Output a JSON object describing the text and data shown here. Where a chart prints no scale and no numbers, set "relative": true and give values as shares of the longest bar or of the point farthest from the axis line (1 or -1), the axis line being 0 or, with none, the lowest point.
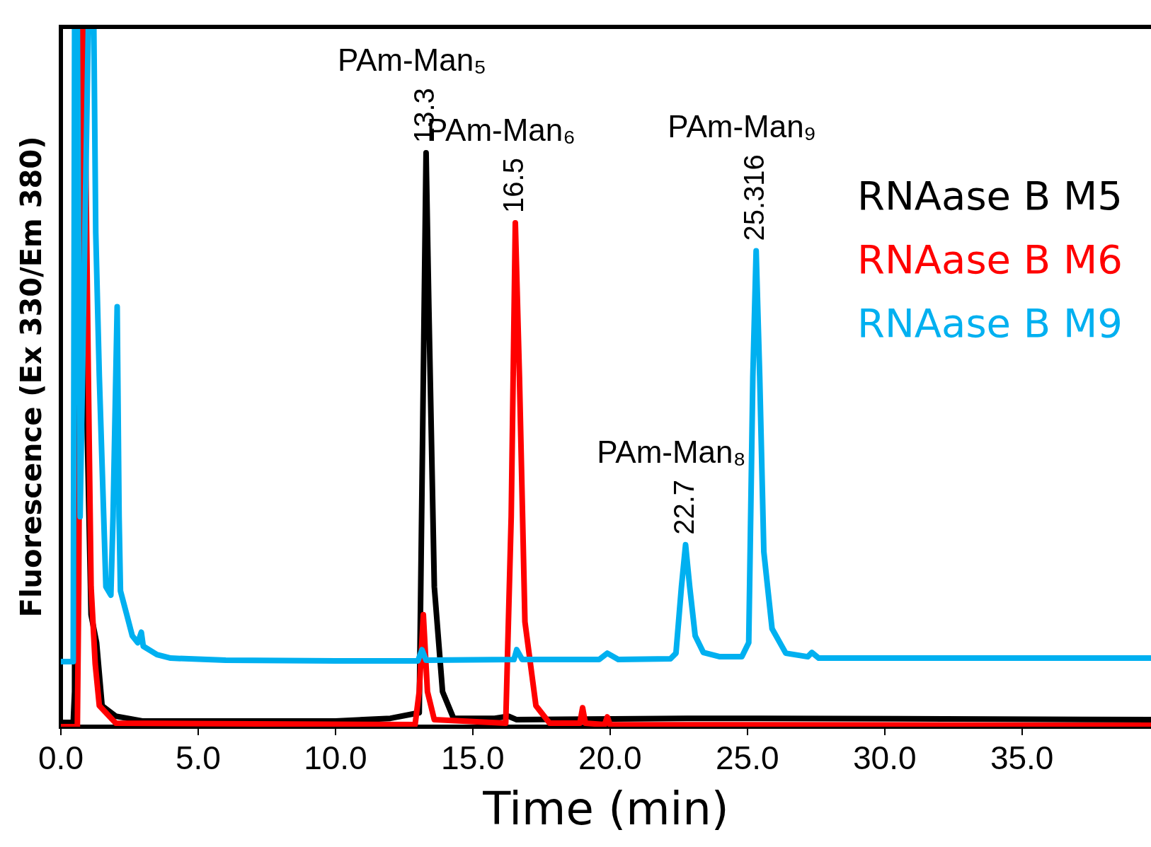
{
  "chart_data": {
    "type": "line",
    "xlabel": "Time (min)",
    "ylabel": "Fluorescence (Ex 330/Em 380)",
    "relative": true,
    "marker": "none",
    "line_style": "solid",
    "grid": false,
    "legend": "top right",
    "xlim": [
      0,
      39.7
    ],
    "xticks": [
      {
        "value": 0,
        "label": "0.0"
      },
      {
        "value": 5,
        "label": "5.0"
      },
      {
        "value": 10,
        "label": "10.0"
      },
      {
        "value": 15,
        "label": "15.0"
      },
      {
        "value": 20,
        "label": "20.0"
      },
      {
        "value": 25,
        "label": "25.0"
      },
      {
        "value": 30,
        "label": "30.0"
      },
      {
        "value": 35,
        "label": "35.0"
      }
    ],
    "series": [
      {
        "name": "RNAase B M5",
        "color": "#000000",
        "x": [
          0,
          0.45,
          0.5,
          0.55,
          0.65,
          1.1,
          1.3,
          1.5,
          2,
          3,
          10,
          12,
          13.05,
          13.2,
          13.3,
          13.4,
          13.6,
          13.9,
          14.3,
          15.8,
          16.3,
          16.6,
          22.8,
          25.4,
          39.7
        ],
        "values": [
          0.006,
          0.006,
          0.05,
          1,
          1,
          0.16,
          0.12,
          0.03,
          0.015,
          0.008,
          0.008,
          0.012,
          0.02,
          0.5,
          0.82,
          0.6,
          0.2,
          0.05,
          0.012,
          0.012,
          0.015,
          0.01,
          0.012,
          0.012,
          0.01
        ]
      },
      {
        "name": "RNAase B M6",
        "color": "#ff0000",
        "x": [
          0,
          0.6,
          0.65,
          0.75,
          0.85,
          1.0,
          1.1,
          1.25,
          1.4,
          2,
          12.9,
          13.05,
          13.2,
          13.35,
          13.6,
          16.2,
          16.4,
          16.55,
          16.7,
          16.9,
          17.3,
          17.8,
          18.9,
          19.0,
          19.1,
          19.8,
          19.9,
          20.0,
          39.7
        ],
        "values": [
          0,
          0,
          0.2,
          1,
          1,
          0.5,
          0.2,
          0.09,
          0.03,
          0.005,
          0.003,
          0.05,
          0.16,
          0.05,
          0.01,
          0.005,
          0.3,
          0.72,
          0.5,
          0.15,
          0.03,
          0.005,
          0.005,
          0.027,
          0.005,
          0.003,
          0.014,
          0.003,
          0.002
        ]
      },
      {
        "name": "RNAase B M9",
        "color": "#00b0f0",
        "x": [
          0,
          0.45,
          0.5,
          0.6,
          0.7,
          1.0,
          1.2,
          1.27,
          1.4,
          1.64,
          1.82,
          1.9,
          2.05,
          2.12,
          2.17,
          2.4,
          2.6,
          2.8,
          2.93,
          3.0,
          3.5,
          4,
          6,
          10,
          13.0,
          13.15,
          13.3,
          16.5,
          16.6,
          16.8,
          19.6,
          19.9,
          20.3,
          22.2,
          22.4,
          22.6,
          22.75,
          22.9,
          23.1,
          23.4,
          24.0,
          24.8,
          25.05,
          25.2,
          25.32,
          25.45,
          25.6,
          25.9,
          26.4,
          27.2,
          27.35,
          27.6,
          39.7
        ],
        "values": [
          0.093,
          0.093,
          1,
          1,
          0.3,
          1,
          1,
          0.706,
          0.5,
          0.2,
          0.188,
          0.3,
          0.6,
          0.3,
          0.194,
          0.16,
          0.13,
          0.12,
          0.135,
          0.115,
          0.103,
          0.098,
          0.095,
          0.094,
          0.094,
          0.11,
          0.095,
          0.096,
          0.11,
          0.096,
          0.096,
          0.105,
          0.096,
          0.097,
          0.105,
          0.2,
          0.26,
          0.2,
          0.13,
          0.106,
          0.1,
          0.1,
          0.12,
          0.5,
          0.68,
          0.5,
          0.25,
          0.14,
          0.105,
          0.1,
          0.106,
          0.098,
          0.098
        ]
      }
    ],
    "annotations": [
      {
        "text": "13.3",
        "x": 13.3,
        "y": 0.82
      },
      "PAm-Man₅",
      {
        "text": "16.5",
        "x": 16.55,
        "y": 0.72
      },
      "PAm-Man₆",
      {
        "text": "22.7",
        "x": 22.75,
        "y": 0.26
      },
      "PAm-Man₈",
      {
        "text": "25.316",
        "x": 25.32,
        "y": 0.68
      },
      "PAm-Man₉"
    ]
  }
}
